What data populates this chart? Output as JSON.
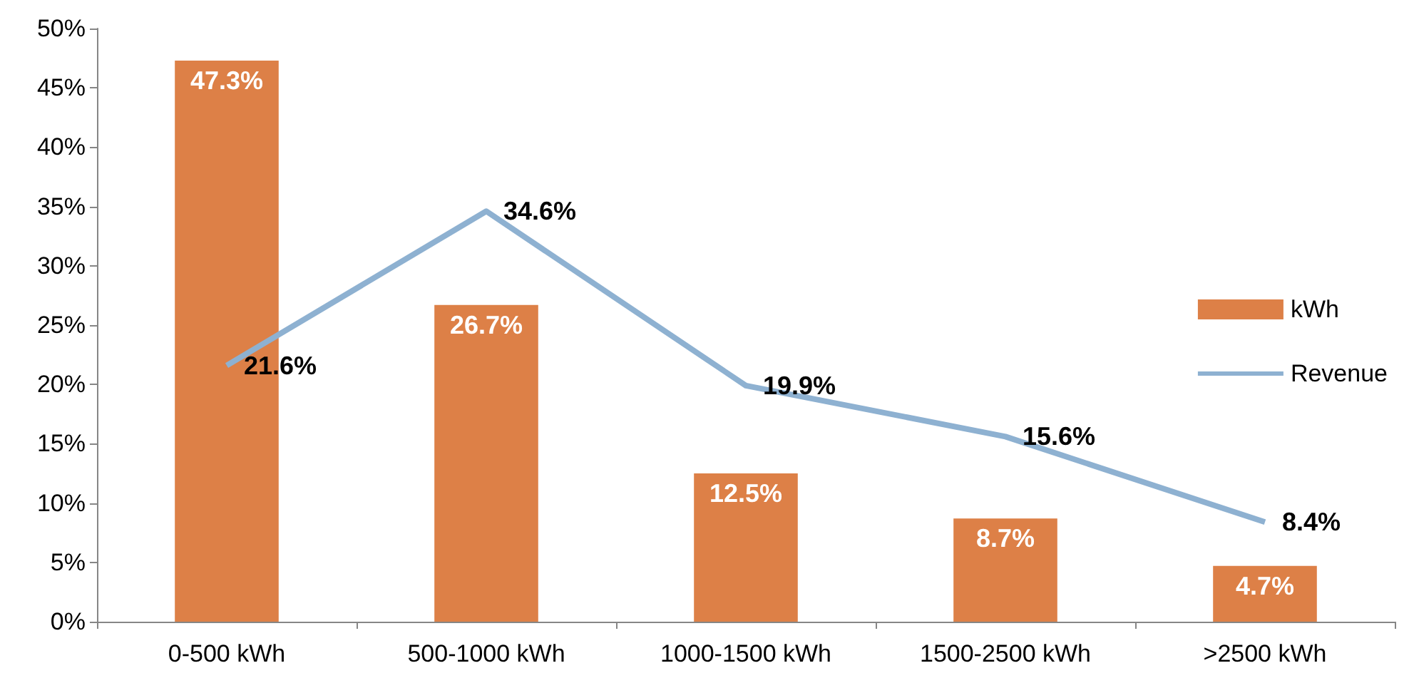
{
  "chart_data": {
    "type": "bar",
    "categories": [
      "0-500 kWh",
      "500-1000 kWh",
      "1000-1500 kWh",
      "1500-2500 kWh",
      ">2500 kWh"
    ],
    "series": [
      {
        "name": "kWh",
        "color": "#dd8047",
        "values": [
          47.3,
          26.7,
          12.5,
          8.7,
          4.7
        ],
        "value_labels": [
          "47.3%",
          "26.7%",
          "12.5%",
          "8.7%",
          "4.7%"
        ]
      },
      {
        "name": "Revenue",
        "type": "line",
        "color": "#8eb1d1",
        "values": [
          21.6,
          34.6,
          19.9,
          15.6,
          8.4
        ],
        "value_labels": [
          "21.6%",
          "34.6%",
          "19.9%",
          "15.6%",
          "8.4%"
        ]
      }
    ],
    "ylim": [
      0,
      50
    ],
    "yticks": [
      {
        "value": 0,
        "label": "0%"
      },
      {
        "value": 5,
        "label": "5%"
      },
      {
        "value": 10,
        "label": "10%"
      },
      {
        "value": 15,
        "label": "15%"
      },
      {
        "value": 20,
        "label": "20%"
      },
      {
        "value": 25,
        "label": "25%"
      },
      {
        "value": 30,
        "label": "30%"
      },
      {
        "value": 35,
        "label": "35%"
      },
      {
        "value": 40,
        "label": "40%"
      },
      {
        "value": 45,
        "label": "45%"
      },
      {
        "value": 50,
        "label": "50%"
      }
    ],
    "grid": false,
    "legend": "right",
    "marker": "none"
  }
}
